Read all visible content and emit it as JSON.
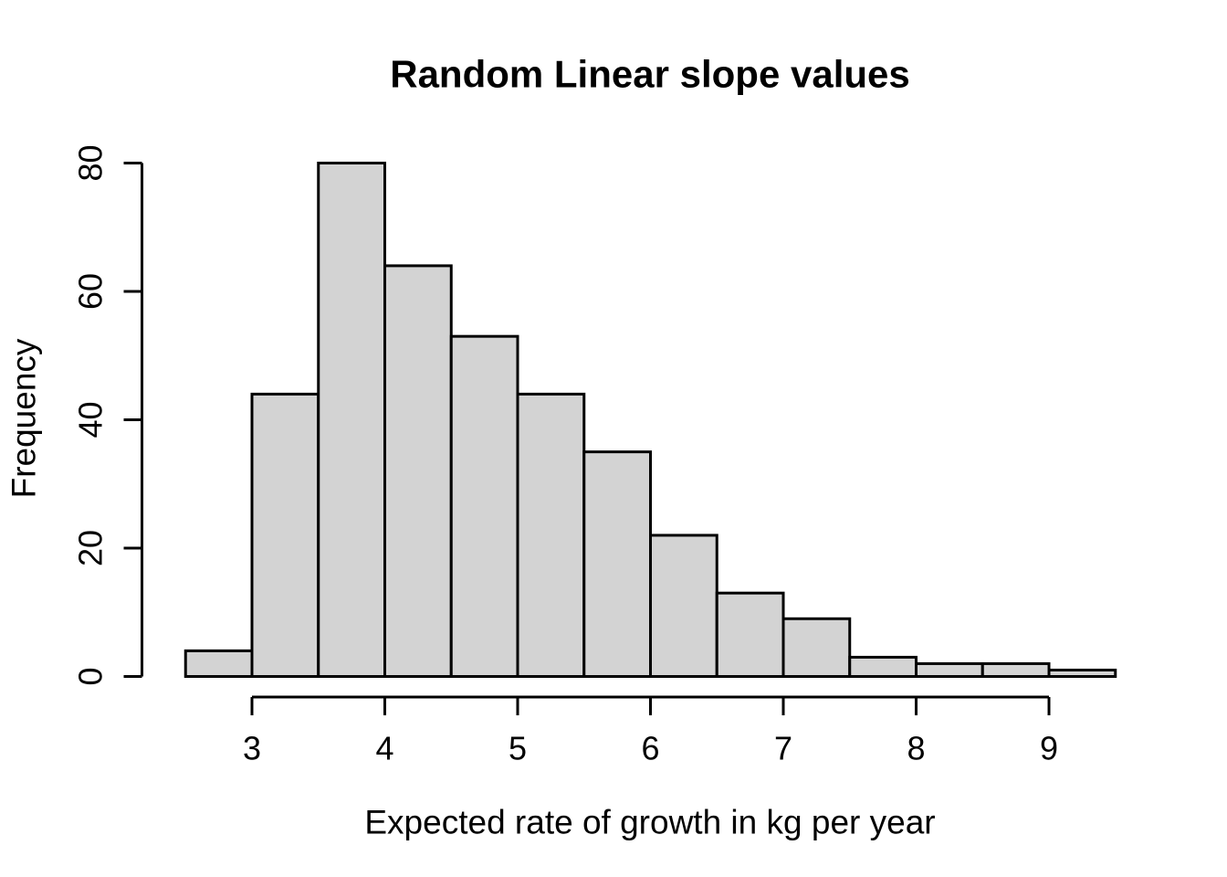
{
  "figure": {
    "title": "Random Linear slope values",
    "xlabel": "Expected rate of growth in kg per year",
    "ylabel": "Frequency"
  },
  "chart_data": {
    "type": "bar",
    "subtype": "histogram",
    "title": "Random Linear slope values",
    "xlabel": "Expected rate of growth in kg per year",
    "ylabel": "Frequency",
    "bin_edges": [
      2.5,
      3.0,
      3.5,
      4.0,
      4.5,
      5.0,
      5.5,
      6.0,
      6.5,
      7.0,
      7.5,
      8.0,
      8.5,
      9.0,
      9.5
    ],
    "values": [
      4,
      44,
      80,
      64,
      53,
      44,
      35,
      22,
      13,
      9,
      3,
      2,
      2,
      1
    ],
    "x_ticks": [
      3,
      4,
      5,
      6,
      7,
      8,
      9
    ],
    "y_ticks": [
      0,
      20,
      40,
      60,
      80
    ],
    "xlim": [
      2.5,
      9.5
    ],
    "ylim": [
      0,
      80
    ],
    "grid": false,
    "legend": null,
    "colors": {
      "bar_fill": "#d3d3d3",
      "bar_stroke": "#000000",
      "axis": "#000000",
      "text": "#000000",
      "background": "#ffffff"
    }
  }
}
